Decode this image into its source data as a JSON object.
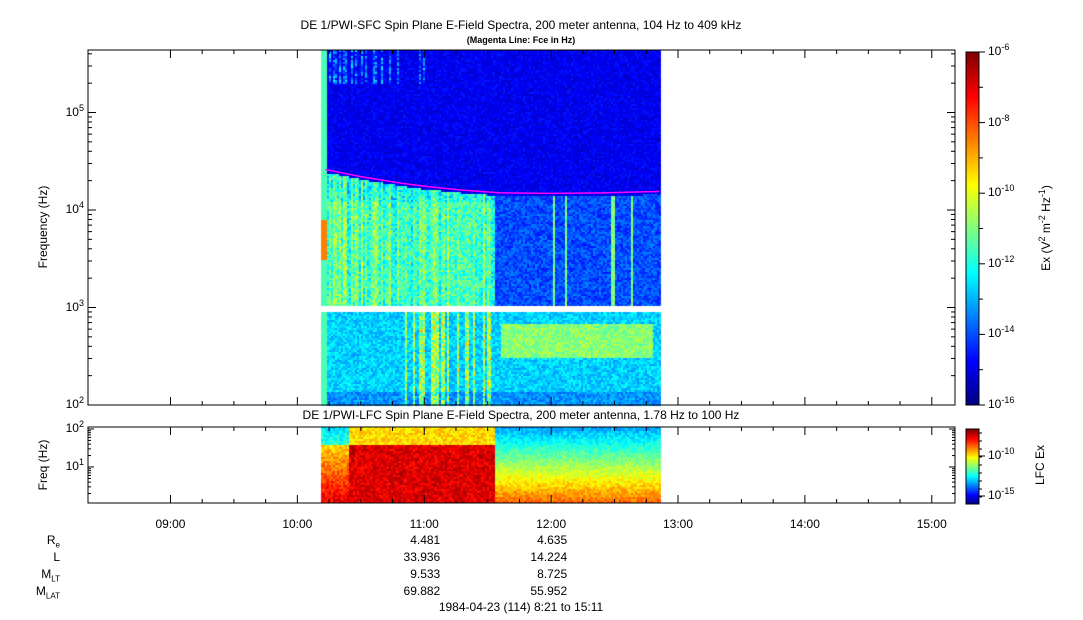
{
  "chart_data": [
    {
      "type": "heatmap",
      "title": "DE 1/PWI-SFC  Spin Plane E-Field Spectra, 200 meter antenna, 104 Hz to 409 kHz",
      "subtitle": "(Magenta Line: Fce in Hz)",
      "ylabel": "Frequency (Hz)",
      "yscale": "log",
      "ylim": [
        100,
        409000
      ],
      "yticks": [
        {
          "base": "10",
          "exp": "2"
        },
        {
          "base": "10",
          "exp": "3"
        },
        {
          "base": "10",
          "exp": "4"
        },
        {
          "base": "10",
          "exp": "5"
        }
      ],
      "data_time_range": [
        "10:11",
        "12:52"
      ],
      "colorbar": {
        "label_main": "Ex (V",
        "label_parts": [
          "2",
          " m",
          "-2",
          " Hz",
          "-1",
          ")"
        ],
        "range_log10": [
          -16,
          -6
        ],
        "ticks": [
          "-6",
          "-8",
          "-10",
          "-12",
          "-14",
          "-16"
        ],
        "colormap": "jet"
      },
      "fce_line": {
        "color": "#ff00ff",
        "points": [
          [
            10.22,
            26000
          ],
          [
            10.5,
            22000
          ],
          [
            10.8,
            19000
          ],
          [
            11.0,
            17500
          ],
          [
            11.3,
            16000
          ],
          [
            11.6,
            15000
          ],
          [
            12.0,
            14800
          ],
          [
            12.4,
            15000
          ],
          [
            12.85,
            15500
          ]
        ]
      }
    },
    {
      "type": "heatmap",
      "title": "DE 1/PWI-LFC  Spin Plane E-Field Spectra, 200 meter antenna, 1.78 Hz to 100 Hz",
      "ylabel": "Freq (Hz)",
      "yscale": "log",
      "ylim": [
        1.78,
        100
      ],
      "yticks": [
        {
          "base": "10",
          "exp": "1"
        },
        {
          "base": "10",
          "exp": "2"
        }
      ],
      "colorbar": {
        "label": "LFC Ex",
        "ticks": [
          "-10",
          "-15"
        ],
        "colormap": "jet"
      }
    }
  ],
  "xaxis": {
    "ticks": [
      "09:00",
      "10:00",
      "11:00",
      "12:00",
      "13:00",
      "14:00",
      "15:00"
    ],
    "range_hours": [
      8.35,
      15.183
    ]
  },
  "ephemeris": {
    "rows": [
      {
        "label": "R",
        "sub": "e",
        "values": [
          "4.481",
          "4.635"
        ]
      },
      {
        "label": "L",
        "sub": "",
        "values": [
          "33.936",
          "14.224"
        ]
      },
      {
        "label": "M",
        "sub": "LT",
        "values": [
          "9.533",
          "8.725"
        ]
      },
      {
        "label": "M",
        "sub": "LAT",
        "values": [
          "69.882",
          "55.952"
        ]
      }
    ],
    "value_times": [
      "11:00",
      "12:00"
    ]
  },
  "footer": "1984-04-23 (114) 8:21 to 15:11"
}
